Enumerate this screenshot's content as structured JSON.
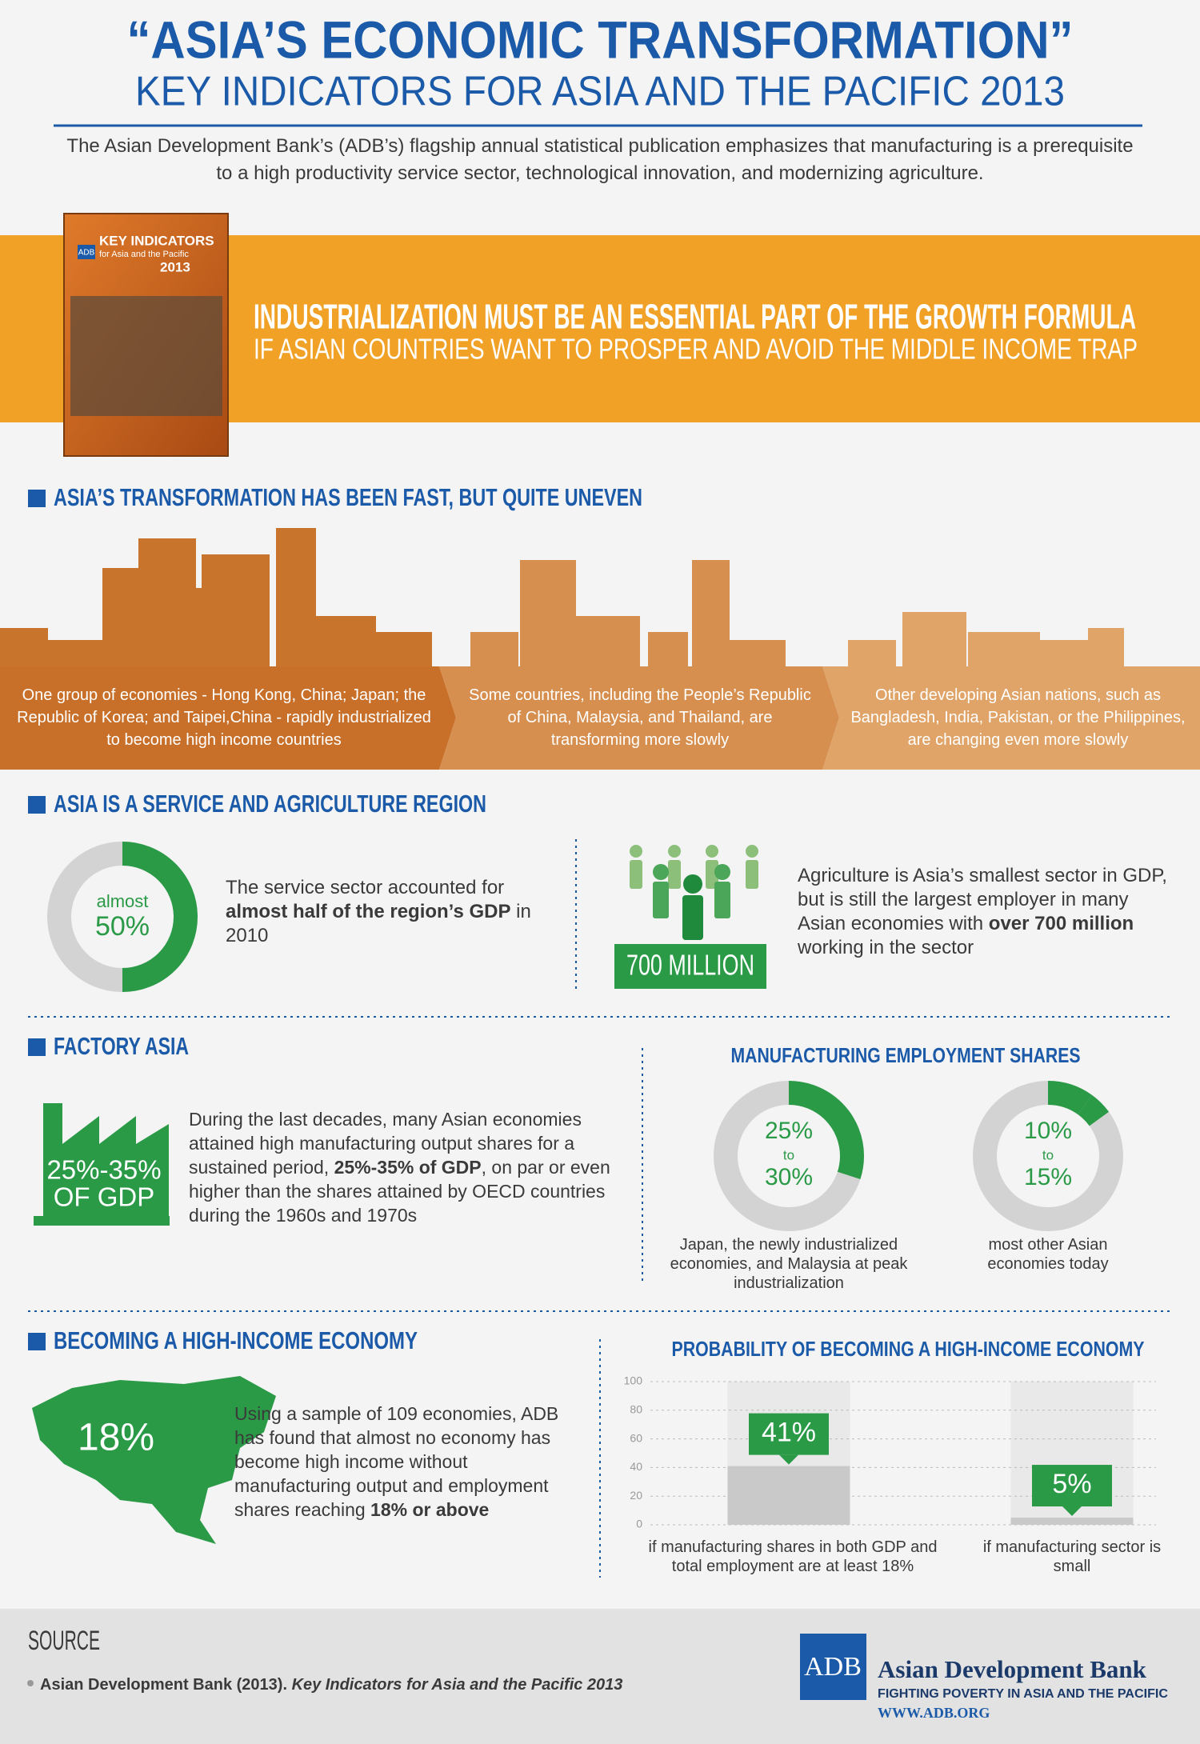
{
  "header": {
    "title": "“ASIA’S ECONOMIC TRANSFORMATION”",
    "subtitle": "KEY INDICATORS FOR ASIA AND THE PACIFIC 2013",
    "intro": "The Asian Development Bank’s (ADB’s) flagship annual statistical publication emphasizes that manufacturing is a prerequisite to a high productivity service sector, technological innovation, and modernizing agriculture."
  },
  "book": {
    "brand": "ADB",
    "title": "KEY INDICATORS",
    "subtitle": "for Asia and the Pacific",
    "year": "2013"
  },
  "banner": {
    "headline": "INDUSTRIALIZATION MUST BE AN ESSENTIAL PART OF THE GROWTH FORMULA",
    "subline": "IF ASIAN COUNTRIES WANT TO PROSPER AND AVOID THE MIDDLE INCOME TRAP"
  },
  "transformation": {
    "heading": "ASIA’S TRANSFORMATION HAS BEEN FAST, BUT QUITE UNEVEN",
    "groups": [
      "One group of economies - Hong Kong, China; Japan; the Republic of Korea; and Taipei,China - rapidly industrialized to become high income countries",
      "Some countries, including the People’s Republic of China, Malaysia, and Thailand, are transforming more slowly",
      "Other developing Asian nations, such as Bangladesh, India, Pakistan, or the Philippines, are changing even more slowly"
    ]
  },
  "service_agriculture": {
    "heading": "ASIA IS A SERVICE AND AGRICULTURE REGION",
    "service": {
      "qualifier": "almost",
      "share": {
        "value": 50,
        "label": "50%"
      },
      "text": [
        "The service sector accounted for",
        "almost half of the region’s GDP",
        "in 2010"
      ]
    },
    "agriculture": {
      "badge": "700 MILLION",
      "text": [
        "Agriculture is Asia’s smallest sector in GDP, but is still the largest employer in many Asian economies with",
        "over 700 million",
        "working in the sector"
      ]
    }
  },
  "factory": {
    "heading": "FACTORY ASIA",
    "badge": [
      "25%-35%",
      "OF GDP"
    ],
    "text": [
      "During the last decades, many Asian economies attained high manufacturing output shares for a sustained period,",
      "25%-35% of GDP",
      ", on par or even higher than the shares attained by OECD countries during the 1960s and 1970s"
    ],
    "chart": {
      "title": "MANUFACTURING EMPLOYMENT SHARES",
      "items": [
        {
          "from": {
            "value": 25,
            "label": "25%"
          },
          "joiner": "to",
          "to": {
            "value": 30,
            "label": "30%"
          },
          "caption": "Japan, the newly industrialized economies, and Malaysia at peak industrialization"
        },
        {
          "from": {
            "value": 10,
            "label": "10%"
          },
          "joiner": "to",
          "to": {
            "value": 15,
            "label": "15%"
          },
          "caption": "most other Asian economies today"
        }
      ]
    }
  },
  "high_income": {
    "heading": "BECOMING A HIGH-INCOME ECONOMY",
    "map_label": "18%",
    "text": [
      "Using a sample of 109 economies, ADB has found that almost no economy has become high income without manufacturing output and employment shares reaching",
      "18% or above"
    ],
    "chart": {
      "type": "bar",
      "title": "PROBABILITY OF BECOMING A HIGH-INCOME ECONOMY",
      "categories": [
        "if manufacturing shares in both GDP and total employment are at least 18%",
        "if manufacturing sector is small"
      ],
      "values": [
        41,
        5
      ],
      "value_labels": [
        "41%",
        "5%"
      ],
      "ylim": [
        0,
        100
      ],
      "yticks": [
        0,
        20,
        40,
        60,
        80,
        100
      ],
      "grid": true
    }
  },
  "source": {
    "heading": "SOURCE",
    "citation": [
      "Asian Development Bank (2013).",
      "Key Indicators for Asia and the Pacific 2013"
    ]
  },
  "footer": {
    "logo": "ADB",
    "name": "Asian Development Bank",
    "tagline": "FIGHTING POVERTY IN ASIA AND THE PACIFIC",
    "url": "WWW.ADB.ORG"
  }
}
